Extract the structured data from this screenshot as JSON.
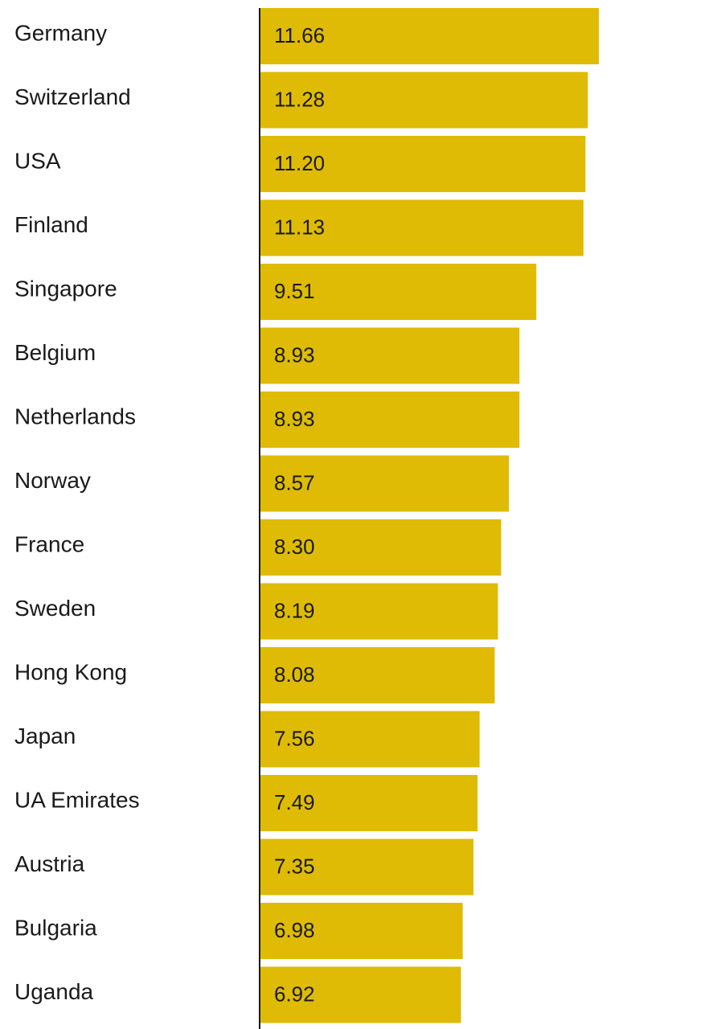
{
  "chart_data": {
    "type": "bar",
    "orientation": "horizontal",
    "categories": [
      "Germany",
      "Switzerland",
      "USA",
      "Finland",
      "Singapore",
      "Belgium",
      "Netherlands",
      "Norway",
      "France",
      "Sweden",
      "Hong Kong",
      "Japan",
      "UA Emirates",
      "Austria",
      "Bulgaria",
      "Uganda"
    ],
    "values": [
      11.66,
      11.28,
      11.2,
      11.13,
      9.51,
      8.93,
      8.93,
      8.57,
      8.3,
      8.19,
      8.08,
      7.56,
      7.49,
      7.35,
      6.98,
      6.92
    ],
    "value_labels": [
      "11.66",
      "11.28",
      "11.20",
      "11.13",
      "9.51",
      "8.93",
      "8.93",
      "8.57",
      "8.30",
      "8.19",
      "8.08",
      "7.56",
      "7.49",
      "7.35",
      "6.98",
      "6.92"
    ],
    "title": "",
    "xlabel": "",
    "ylabel": "",
    "xlim": [
      0,
      12
    ],
    "grid": false,
    "legend": "none",
    "bar_color": "#dfbb05",
    "axis_color": "#1a1a1a"
  }
}
